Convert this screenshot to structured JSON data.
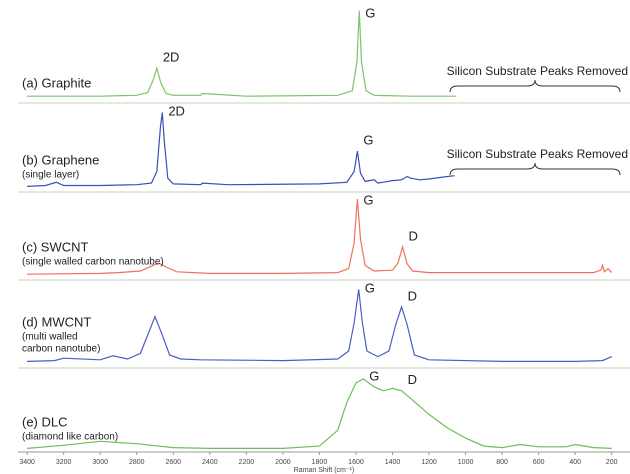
{
  "chart_data": [
    {
      "type": "line",
      "title": "(a) Graphite",
      "subtitle": [],
      "note": "Silicon Substrate Peaks Removed",
      "xlim": [
        3450,
        100
      ],
      "ylim": [
        0,
        100
      ],
      "x": [
        3400,
        3000,
        2800,
        2740,
        2710,
        2690,
        2670,
        2640,
        2600,
        2450,
        2440,
        2200,
        1700,
        1620,
        1595,
        1582,
        1570,
        1545,
        1500,
        1300,
        1050
      ],
      "series": [
        {
          "color": "#7cc46a",
          "values": [
            2,
            2,
            3,
            6,
            20,
            33,
            18,
            5,
            3,
            3,
            5,
            2,
            3,
            8,
            40,
            97,
            40,
            8,
            3,
            2,
            2
          ]
        }
      ],
      "annotations": [
        {
          "text": "2D",
          "x": 2690
        },
        {
          "text": "G",
          "x": 1582
        }
      ]
    },
    {
      "type": "line",
      "title": "(b) Graphene",
      "subtitle": [
        "(single layer)"
      ],
      "note": "Silicon Substrate Peaks Removed",
      "xlim": [
        3450,
        100
      ],
      "ylim": [
        0,
        100
      ],
      "x": [
        3400,
        3300,
        3240,
        3200,
        3000,
        2800,
        2720,
        2690,
        2670,
        2660,
        2650,
        2630,
        2600,
        2450,
        2440,
        2300,
        1800,
        1650,
        1610,
        1592,
        1575,
        1550,
        1500,
        1480,
        1400,
        1350,
        1320,
        1300,
        1250,
        1200,
        1100,
        1060
      ],
      "series": [
        {
          "color": "#3a4fb3",
          "values": [
            2,
            3,
            7,
            3,
            3,
            4,
            6,
            20,
            75,
            92,
            60,
            12,
            5,
            4,
            6,
            4,
            5,
            7,
            20,
            45,
            18,
            8,
            10,
            6,
            9,
            10,
            14,
            12,
            10,
            11,
            14,
            15
          ]
        }
      ],
      "annotations": [
        {
          "text": "2D",
          "x": 2660
        },
        {
          "text": "G",
          "x": 1592
        }
      ]
    },
    {
      "type": "line",
      "title": "(c) SWCNT",
      "subtitle": [
        "(single walled carbon nanotube)"
      ],
      "xlim": [
        3450,
        100
      ],
      "ylim": [
        0,
        100
      ],
      "x": [
        3400,
        3000,
        2900,
        2780,
        2720,
        2680,
        2640,
        2580,
        2400,
        2000,
        1700,
        1640,
        1610,
        1592,
        1575,
        1550,
        1500,
        1400,
        1370,
        1345,
        1320,
        1290,
        1200,
        800,
        300,
        260,
        250,
        240,
        220,
        200
      ],
      "series": [
        {
          "color": "#f0705a",
          "values": [
            1,
            2,
            3,
            5,
            11,
            15,
            10,
            4,
            2,
            2,
            3,
            8,
            40,
            95,
            45,
            12,
            5,
            6,
            15,
            35,
            14,
            5,
            3,
            3,
            3,
            6,
            12,
            4,
            8,
            3
          ]
        }
      ],
      "annotations": [
        {
          "text": "G",
          "x": 1592
        },
        {
          "text": "D",
          "x": 1345
        }
      ]
    },
    {
      "type": "line",
      "title": "(d) MWCNT",
      "subtitle": [
        "(multi walled",
        "carbon nanotube)"
      ],
      "xlim": [
        3450,
        100
      ],
      "ylim": [
        0,
        100
      ],
      "x": [
        3400,
        3250,
        3200,
        3000,
        2930,
        2850,
        2780,
        2740,
        2700,
        2660,
        2620,
        2560,
        2450,
        2000,
        1700,
        1640,
        1610,
        1585,
        1565,
        1540,
        1480,
        1420,
        1380,
        1350,
        1320,
        1280,
        1200,
        800,
        400,
        250,
        200
      ],
      "series": [
        {
          "color": "#4a5fc2",
          "values": [
            2,
            3,
            6,
            4,
            9,
            5,
            12,
            35,
            58,
            35,
            10,
            5,
            4,
            3,
            5,
            15,
            50,
            92,
            50,
            15,
            8,
            15,
            50,
            70,
            48,
            10,
            4,
            2,
            2,
            3,
            8
          ]
        }
      ],
      "annotations": [
        {
          "text": "G",
          "x": 1585
        },
        {
          "text": "D",
          "x": 1350
        }
      ]
    },
    {
      "type": "line",
      "title": "(e) DLC",
      "subtitle": [
        "(diamond like carbon)"
      ],
      "xlim": [
        3450,
        100
      ],
      "ylim": [
        0,
        100
      ],
      "xticks": [
        3400,
        3200,
        3000,
        2800,
        2600,
        2400,
        2200,
        2000,
        1800,
        1600,
        1400,
        1200,
        1000,
        800,
        600,
        400,
        200
      ],
      "xlabel": "Raman Shift (cm⁻¹)",
      "x": [
        3400,
        3200,
        3000,
        2800,
        2600,
        2400,
        2000,
        1800,
        1700,
        1650,
        1600,
        1560,
        1500,
        1450,
        1400,
        1350,
        1300,
        1200,
        1100,
        1000,
        900,
        800,
        700,
        600,
        450,
        400,
        300,
        200
      ],
      "series": [
        {
          "color": "#6cbf5a",
          "values": [
            2,
            6,
            11,
            8,
            3,
            2,
            2,
            5,
            25,
            60,
            85,
            90,
            80,
            75,
            78,
            75,
            65,
            45,
            28,
            15,
            5,
            3,
            7,
            4,
            4,
            7,
            3,
            2
          ]
        }
      ],
      "annotations": [
        {
          "text": "G",
          "x": 1560
        },
        {
          "text": "D",
          "x": 1350
        }
      ]
    }
  ]
}
